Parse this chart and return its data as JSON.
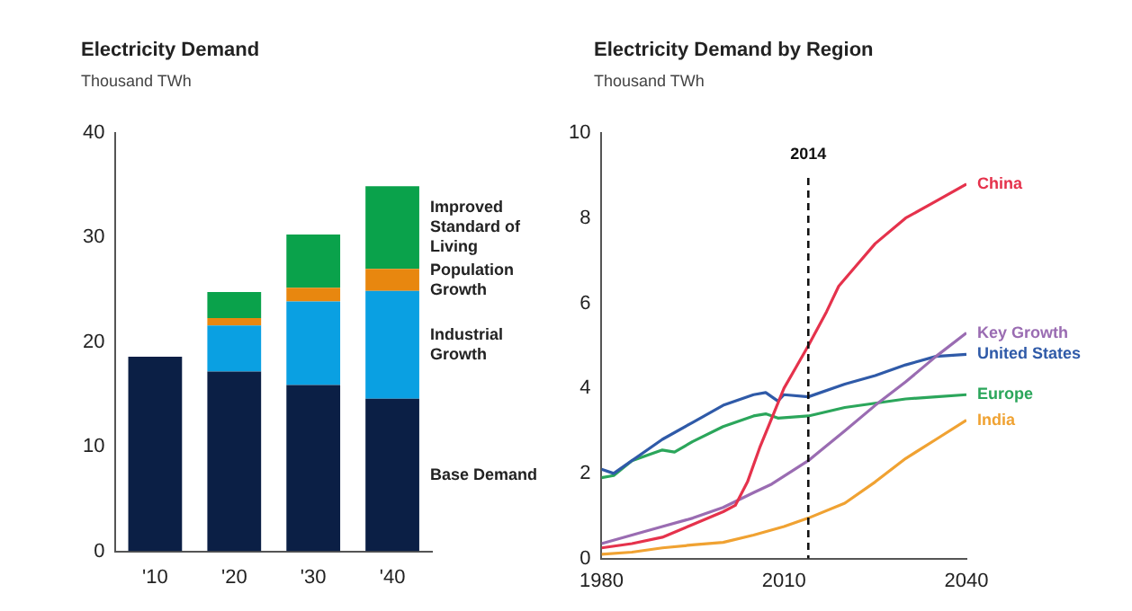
{
  "chart_data": [
    {
      "type": "bar",
      "title": "Electricity Demand",
      "subtitle": "Thousand TWh",
      "categories": [
        "'10",
        "'20",
        "'30",
        "'40"
      ],
      "stacked": true,
      "legend": false,
      "grid": false,
      "ylim": [
        0,
        40
      ],
      "yticks": [
        0,
        10,
        20,
        30,
        40
      ],
      "series": [
        {
          "name": "Base Demand",
          "color": "#0b1f45",
          "values": [
            18.6,
            17.2,
            15.9,
            14.6
          ]
        },
        {
          "name": "Industrial Growth",
          "color": "#0aa0e2",
          "values": [
            null,
            4.4,
            8.0,
            10.3
          ]
        },
        {
          "name": "Population Growth",
          "color": "#e8870f",
          "values": [
            null,
            0.7,
            1.3,
            2.1
          ]
        },
        {
          "name": "Improved Standard of Living",
          "color": "#0aa24b",
          "values": [
            null,
            2.5,
            5.1,
            7.9
          ]
        }
      ]
    },
    {
      "type": "line",
      "title": "Electricity Demand by Region",
      "subtitle": "Thousand TWh",
      "legend": false,
      "grid": false,
      "xlim": [
        1980,
        2040
      ],
      "xticks": [
        1980,
        2010,
        2040
      ],
      "ylim": [
        0,
        10
      ],
      "yticks": [
        0,
        2,
        4,
        6,
        8,
        10
      ],
      "ref_lines": [
        {
          "axis": "x",
          "value": 2014,
          "label": "2014",
          "line_style": "dashed",
          "color": "#111111"
        }
      ],
      "series": [
        {
          "name": "China",
          "color": "#e5324c",
          "x": [
            1980,
            1985,
            1990,
            1995,
            2000,
            2002,
            2004,
            2006,
            2008,
            2010,
            2012,
            2014,
            2017,
            2019,
            2022,
            2025,
            2030,
            2035,
            2040
          ],
          "values": [
            0.25,
            0.35,
            0.5,
            0.8,
            1.1,
            1.25,
            1.8,
            2.6,
            3.3,
            4.0,
            4.5,
            5.0,
            5.8,
            6.4,
            6.9,
            7.4,
            8.0,
            8.4,
            8.8
          ]
        },
        {
          "name": "Key Growth",
          "color": "#9a6cb2",
          "x": [
            1980,
            1985,
            1990,
            1995,
            2000,
            2005,
            2008,
            2014,
            2020,
            2025,
            2030,
            2035,
            2040
          ],
          "values": [
            0.35,
            0.55,
            0.75,
            0.95,
            1.2,
            1.55,
            1.75,
            2.3,
            3.0,
            3.6,
            4.15,
            4.75,
            5.3
          ]
        },
        {
          "name": "United States",
          "color": "#2f5aa8",
          "x": [
            1980,
            1982,
            1985,
            1990,
            1995,
            2000,
            2005,
            2007,
            2009,
            2010,
            2014,
            2020,
            2025,
            2030,
            2035,
            2040
          ],
          "values": [
            2.1,
            2.0,
            2.3,
            2.8,
            3.2,
            3.6,
            3.85,
            3.9,
            3.7,
            3.85,
            3.8,
            4.1,
            4.3,
            4.55,
            4.75,
            4.8
          ]
        },
        {
          "name": "Europe",
          "color": "#2ba65b",
          "x": [
            1980,
            1982,
            1985,
            1990,
            1992,
            1995,
            2000,
            2005,
            2007,
            2009,
            2014,
            2020,
            2025,
            2030,
            2035,
            2040
          ],
          "values": [
            1.9,
            1.95,
            2.3,
            2.55,
            2.5,
            2.75,
            3.1,
            3.35,
            3.4,
            3.3,
            3.35,
            3.55,
            3.65,
            3.75,
            3.8,
            3.85
          ]
        },
        {
          "name": "India",
          "color": "#f0a232",
          "x": [
            1980,
            1985,
            1990,
            1995,
            2000,
            2005,
            2010,
            2014,
            2020,
            2025,
            2030,
            2035,
            2040
          ],
          "values": [
            0.1,
            0.15,
            0.25,
            0.32,
            0.38,
            0.55,
            0.75,
            0.95,
            1.3,
            1.8,
            2.35,
            2.8,
            3.25
          ]
        }
      ]
    }
  ]
}
